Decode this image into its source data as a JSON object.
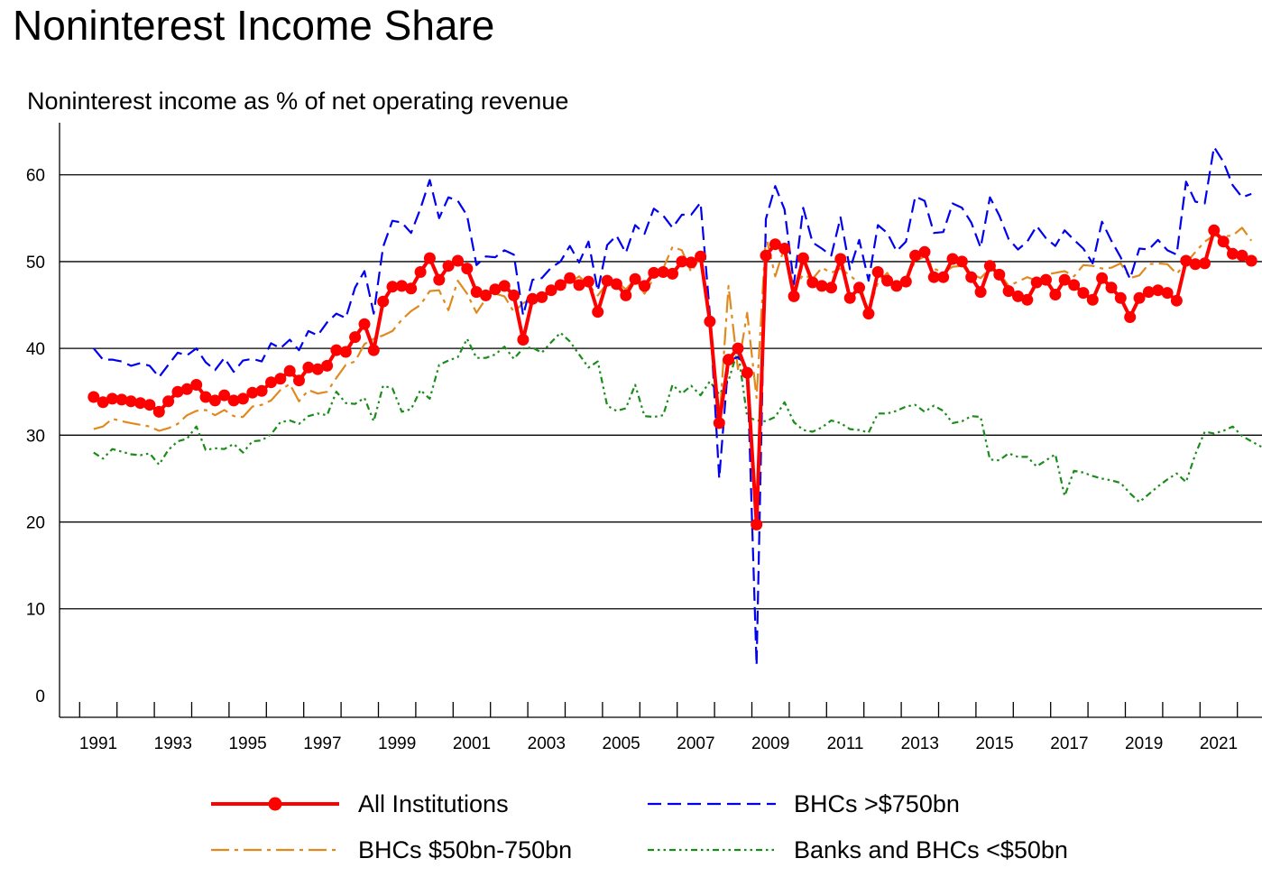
{
  "title": "Noninterest Income Share",
  "subtitle": "Noninterest income as % of net operating revenue",
  "colors": {
    "all": "#ff0000",
    "large": "#0000ee",
    "mid": "#e08a1e",
    "small": "#1a8c1a"
  },
  "legend": [
    {
      "key": "all",
      "label": "All Institutions"
    },
    {
      "key": "large",
      "label": "BHCs >$750bn"
    },
    {
      "key": "mid",
      "label": "BHCs $50bn-750bn"
    },
    {
      "key": "small",
      "label": "Banks and BHCs <$50bn"
    }
  ],
  "chart_data": {
    "type": "line",
    "title": "Noninterest Income Share",
    "subtitle": "Noninterest income as % of net operating revenue",
    "ylim": [
      -2.5,
      66
    ],
    "yticks": [
      0,
      10,
      20,
      30,
      40,
      50,
      60
    ],
    "xticks": [
      "1991",
      "1993",
      "1995",
      "1997",
      "1999",
      "2001",
      "2003",
      "2005",
      "2007",
      "2009",
      "2011",
      "2013",
      "2015",
      "2017",
      "2019",
      "2021"
    ],
    "x_frequency": "quarterly",
    "x_start": "1990-Q4",
    "x_end": "2021-Q4",
    "grid": "horizontal",
    "legend_position": "bottom",
    "series": [
      {
        "name": "All Institutions",
        "key": "all",
        "values": [
          34.4,
          33.8,
          34.2,
          34.1,
          33.9,
          33.7,
          33.5,
          32.7,
          33.9,
          35.0,
          35.3,
          35.8,
          34.4,
          34.0,
          34.6,
          34.0,
          34.2,
          34.9,
          35.1,
          36.1,
          36.5,
          37.4,
          36.3,
          37.8,
          37.6,
          38.0,
          39.8,
          39.6,
          41.3,
          42.8,
          39.8,
          45.4,
          47.1,
          47.2,
          46.9,
          48.8,
          50.4,
          47.9,
          49.5,
          50.1,
          49.2,
          46.5,
          46.1,
          46.8,
          47.2,
          46.1,
          41.0,
          45.7,
          45.9,
          46.7,
          47.3,
          48.1,
          47.3,
          47.7,
          44.2,
          47.8,
          47.4,
          46.1,
          48.0,
          47.2,
          48.7,
          48.8,
          48.6,
          50.0,
          49.9,
          50.6,
          43.1,
          31.4,
          38.7,
          40.0,
          37.2,
          19.7,
          50.7,
          52.0,
          51.5,
          46.0,
          50.4,
          47.6,
          47.2,
          47.0,
          50.3,
          45.8,
          47.0,
          44.0,
          48.8,
          47.8,
          47.2,
          47.7,
          50.7,
          51.1,
          48.2,
          48.2,
          50.3,
          50.0,
          48.2,
          46.5,
          49.5,
          48.5,
          46.6,
          46.0,
          45.6,
          47.6,
          47.9,
          46.2,
          47.9,
          47.3,
          46.4,
          45.6,
          48.1,
          47.0,
          45.8,
          43.6,
          45.8,
          46.5,
          46.7,
          46.4,
          45.5,
          50.1,
          49.7,
          49.8,
          53.6,
          52.3,
          50.9,
          50.7,
          50.1
        ]
      },
      {
        "name": "BHCs >$750bn",
        "key": "large",
        "values": [
          40.0,
          38.7,
          38.7,
          38.5,
          38.0,
          38.3,
          38.0,
          36.7,
          38.1,
          39.5,
          39.2,
          40.0,
          38.4,
          37.5,
          38.9,
          37.3,
          38.6,
          38.8,
          38.5,
          40.6,
          40.0,
          41.0,
          39.8,
          42.0,
          41.5,
          43.0,
          44.0,
          43.5,
          47.0,
          48.9,
          44.0,
          51.7,
          54.7,
          54.5,
          53.3,
          56.1,
          59.4,
          55.0,
          57.4,
          57.0,
          55.3,
          49.6,
          50.6,
          50.5,
          51.3,
          50.8,
          43.8,
          47.9,
          48.1,
          49.3,
          50.0,
          51.8,
          49.9,
          52.3,
          46.6,
          51.9,
          53.0,
          51.0,
          54.2,
          53.2,
          56.1,
          55.3,
          53.9,
          55.4,
          55.4,
          56.8,
          44.0,
          25.0,
          38.6,
          39.0,
          38.0,
          3.5,
          54.9,
          58.7,
          56.0,
          47.4,
          56.2,
          52.2,
          51.5,
          50.7,
          55.1,
          49.1,
          52.5,
          47.8,
          54.2,
          53.3,
          51.2,
          52.3,
          57.5,
          57.0,
          53.3,
          53.4,
          56.7,
          56.2,
          54.5,
          51.6,
          57.4,
          55.3,
          52.6,
          51.4,
          52.3,
          54.1,
          52.7,
          51.8,
          53.6,
          52.5,
          51.5,
          49.8,
          54.6,
          52.4,
          50.5,
          48.0,
          51.5,
          51.4,
          52.5,
          51.3,
          50.8,
          59.2,
          56.9,
          56.7,
          63.2,
          61.5,
          58.8,
          57.4,
          57.8
        ]
      },
      {
        "name": "BHCs $50bn-750bn",
        "key": "mid",
        "values": [
          30.7,
          31.0,
          31.9,
          31.6,
          31.4,
          31.2,
          31.0,
          30.5,
          30.8,
          31.3,
          32.3,
          32.8,
          32.9,
          32.3,
          32.9,
          32.2,
          32.1,
          33.3,
          33.5,
          34.0,
          35.2,
          35.9,
          33.9,
          35.2,
          34.8,
          35.0,
          36.6,
          38.1,
          38.5,
          40.5,
          41.1,
          41.5,
          42.0,
          43.3,
          44.3,
          45.0,
          46.6,
          46.7,
          44.4,
          47.8,
          46.3,
          44.1,
          45.7,
          46.3,
          46.0,
          44.2,
          45.2,
          45.8,
          46.2,
          46.7,
          47.4,
          47.6,
          48.3,
          47.3,
          46.1,
          47.5,
          47.7,
          46.8,
          48.0,
          46.3,
          48.1,
          49.2,
          51.7,
          51.3,
          48.8,
          50.6,
          44.0,
          31.4,
          47.2,
          37.6,
          44.1,
          34.3,
          53.0,
          48.3,
          51.7,
          46.9,
          48.5,
          48.0,
          49.3,
          48.7,
          49.2,
          48.4,
          47.5,
          44.3,
          47.6,
          48.7,
          46.8,
          48.0,
          50.0,
          50.6,
          49.2,
          48.7,
          49.4,
          49.5,
          48.6,
          48.1,
          49.2,
          48.7,
          47.2,
          47.7,
          48.2,
          47.8,
          48.5,
          48.7,
          48.9,
          48.3,
          49.6,
          49.5,
          49.2,
          49.3,
          49.8,
          48.1,
          48.4,
          49.7,
          49.8,
          49.7,
          48.6,
          49.8,
          51.1,
          52.3,
          53.0,
          52.9,
          53.0,
          53.9,
          52.4
        ]
      },
      {
        "name": "Banks and BHCs <$50bn",
        "key": "small",
        "values": [
          28.0,
          27.3,
          28.4,
          28.1,
          27.8,
          27.7,
          27.9,
          26.6,
          28.3,
          29.3,
          29.6,
          31.0,
          28.3,
          28.5,
          28.4,
          29.0,
          28.0,
          29.3,
          29.4,
          30.1,
          31.5,
          31.7,
          31.3,
          32.2,
          32.5,
          32.3,
          35.0,
          33.7,
          33.6,
          34.3,
          31.6,
          35.7,
          35.4,
          32.7,
          33.0,
          35.2,
          34.2,
          38.1,
          38.6,
          39.0,
          41.1,
          38.9,
          38.9,
          39.3,
          40.2,
          38.8,
          40.0,
          40.1,
          39.5,
          40.7,
          41.8,
          40.8,
          39.3,
          37.8,
          38.5,
          33.4,
          32.8,
          33.1,
          35.8,
          32.2,
          32.1,
          32.3,
          35.8,
          34.8,
          35.7,
          34.6,
          36.2,
          34.7,
          36.3,
          39.8,
          32.1,
          31.7,
          31.6,
          32.1,
          33.8,
          31.5,
          30.6,
          30.4,
          30.9,
          31.7,
          31.4,
          30.7,
          30.6,
          30.3,
          32.5,
          32.5,
          32.8,
          33.3,
          33.5,
          32.7,
          33.4,
          32.8,
          31.4,
          31.6,
          32.2,
          32.1,
          27.2,
          27.1,
          27.9,
          27.5,
          27.5,
          26.4,
          27.1,
          27.8,
          23.0,
          25.9,
          25.7,
          25.3,
          25.0,
          24.8,
          24.5,
          23.3,
          22.3,
          23.2,
          24.1,
          24.9,
          25.6,
          24.6,
          27.8,
          30.4,
          30.2,
          30.5,
          31.0,
          29.9,
          29.3,
          28.7,
          28.0
        ]
      }
    ]
  }
}
